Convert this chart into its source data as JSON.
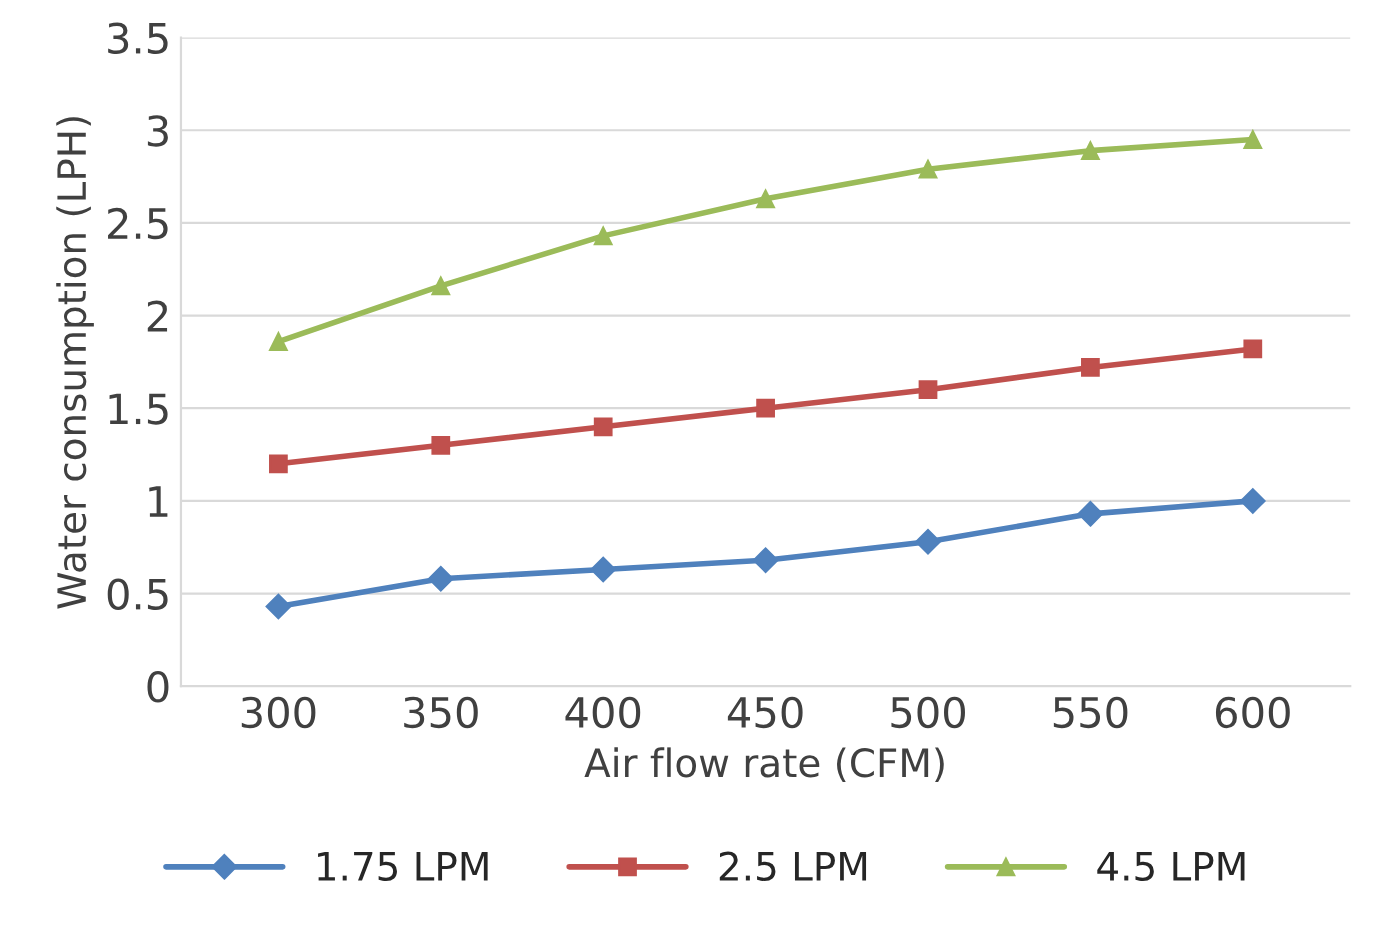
{
  "chart_data": {
    "type": "line",
    "xlabel": "Air flow rate (CFM)",
    "ylabel": "Water consumption (LPH)",
    "categories": [
      "300",
      "350",
      "400",
      "450",
      "500",
      "550",
      "600"
    ],
    "series": [
      {
        "name": "1.75 LPM",
        "color": "#4f81bd",
        "marker": "diamond",
        "values": [
          0.43,
          0.58,
          0.63,
          0.68,
          0.78,
          0.93,
          1.0
        ]
      },
      {
        "name": "2.5 LPM",
        "color": "#c0504d",
        "marker": "square",
        "values": [
          1.2,
          1.3,
          1.4,
          1.5,
          1.6,
          1.72,
          1.82
        ]
      },
      {
        "name": "4.5 LPM",
        "color": "#9bbb59",
        "marker": "triangle",
        "values": [
          1.86,
          2.16,
          2.43,
          2.63,
          2.79,
          2.89,
          2.95
        ]
      }
    ],
    "ylim": [
      0,
      3.5
    ],
    "yticks": [
      0,
      0.5,
      1,
      1.5,
      2,
      2.5,
      3,
      3.5
    ],
    "grid": "y",
    "legend": "bottom",
    "line_style": "solid"
  }
}
